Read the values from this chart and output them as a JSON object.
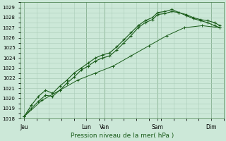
{
  "bg_color": "#cce8d8",
  "grid_color": "#aaccb8",
  "line_color": "#1a5c1a",
  "xlabel": "Pression niveau de la mer( hPa )",
  "ylim": [
    1018,
    1029.5
  ],
  "yticks": [
    1018,
    1019,
    1020,
    1021,
    1022,
    1023,
    1024,
    1025,
    1026,
    1027,
    1028,
    1029
  ],
  "xtick_labels": [
    "Jeu",
    "Lun",
    "Ven",
    "Sam",
    "Dim"
  ],
  "xtick_positions": [
    0.0,
    3.5,
    4.5,
    7.5,
    10.5
  ],
  "vline_positions": [
    0.0,
    3.5,
    4.5,
    7.5,
    10.5
  ],
  "xlim": [
    -0.2,
    11.2
  ],
  "series1_x": [
    0.0,
    0.4,
    0.8,
    1.2,
    1.6,
    2.0,
    2.4,
    2.8,
    3.2,
    3.6,
    4.0,
    4.4,
    4.8,
    5.2,
    5.6,
    6.0,
    6.4,
    6.8,
    7.2,
    7.5,
    7.9,
    8.3,
    8.7,
    9.1,
    9.5,
    9.9,
    10.3,
    10.7,
    11.0
  ],
  "series1_y": [
    1018.2,
    1019.0,
    1019.7,
    1020.3,
    1020.2,
    1020.8,
    1021.5,
    1022.1,
    1022.8,
    1023.2,
    1023.7,
    1024.0,
    1024.2,
    1024.8,
    1025.5,
    1026.2,
    1027.0,
    1027.5,
    1027.8,
    1028.3,
    1028.4,
    1028.6,
    1028.5,
    1028.2,
    1027.9,
    1027.7,
    1027.5,
    1027.2,
    1027.0
  ],
  "series2_x": [
    0.0,
    0.4,
    0.8,
    1.2,
    1.6,
    2.0,
    2.4,
    2.8,
    3.2,
    3.6,
    4.0,
    4.4,
    4.8,
    5.2,
    5.6,
    6.0,
    6.4,
    6.8,
    7.2,
    7.5,
    7.9,
    8.3,
    8.7,
    9.1,
    9.5,
    9.9,
    10.3,
    10.7,
    11.0
  ],
  "series2_y": [
    1018.2,
    1019.3,
    1020.2,
    1020.8,
    1020.5,
    1021.2,
    1021.8,
    1022.5,
    1023.0,
    1023.5,
    1024.0,
    1024.3,
    1024.5,
    1025.1,
    1025.8,
    1026.5,
    1027.2,
    1027.7,
    1028.0,
    1028.5,
    1028.6,
    1028.8,
    1028.5,
    1028.3,
    1028.0,
    1027.8,
    1027.7,
    1027.5,
    1027.2
  ],
  "series3_x": [
    0.0,
    1.0,
    2.0,
    3.0,
    4.0,
    5.0,
    6.0,
    7.0,
    8.0,
    9.0,
    10.0,
    11.0
  ],
  "series3_y": [
    1018.2,
    1019.8,
    1020.8,
    1021.8,
    1022.5,
    1023.2,
    1024.2,
    1025.2,
    1026.2,
    1027.0,
    1027.2,
    1027.0
  ],
  "ytick_fontsize": 5,
  "xtick_fontsize": 5.5,
  "xlabel_fontsize": 6.5
}
